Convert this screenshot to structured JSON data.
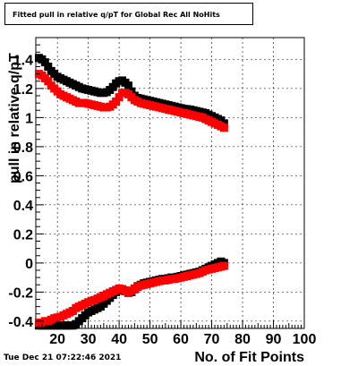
{
  "title": "Fitted pull in relative q/pT for Global Rec All NoHits",
  "timestamp": "Tue Dec 21 07:22:46 2021",
  "chart_data": {
    "type": "scatter",
    "title": "Fitted pull in relative q/pT for Global Rec All NoHits",
    "xlabel": "No. of Fit Points",
    "ylabel": "pull in relative q/pT",
    "xlim": [
      13,
      100
    ],
    "ylim": [
      -0.45,
      1.55
    ],
    "x_ticks": [
      20,
      30,
      40,
      50,
      60,
      70,
      80,
      90,
      100
    ],
    "x_tick_labels": [
      "20",
      "30",
      "40",
      "50",
      "60",
      "70",
      "80",
      "90",
      "100"
    ],
    "y_ticks": [
      -0.4,
      -0.2,
      0,
      0.2,
      0.4,
      0.6,
      0.8,
      1,
      1.2,
      1.4
    ],
    "y_tick_labels": [
      "-0.4",
      "-0.2",
      "0",
      "0.2",
      "0.4",
      "0.6",
      "0.8",
      "1",
      "1.2",
      "1.4"
    ],
    "grid": true,
    "x": [
      14,
      15,
      16,
      17,
      18,
      19,
      20,
      21,
      22,
      23,
      24,
      25,
      26,
      27,
      28,
      29,
      30,
      31,
      32,
      33,
      34,
      35,
      36,
      37,
      38,
      39,
      40,
      41,
      42,
      43,
      44,
      45,
      46,
      47,
      48,
      49,
      50,
      51,
      52,
      53,
      54,
      55,
      56,
      57,
      58,
      59,
      60,
      61,
      62,
      63,
      64,
      65,
      66,
      67,
      68,
      69,
      70,
      71,
      72,
      73,
      74
    ],
    "series": [
      {
        "color": "#000000",
        "upper": [
          1.41,
          1.4,
          1.38,
          1.35,
          1.32,
          1.3,
          1.28,
          1.27,
          1.26,
          1.25,
          1.24,
          1.23,
          1.22,
          1.21,
          1.2,
          1.195,
          1.19,
          1.185,
          1.18,
          1.175,
          1.17,
          1.17,
          1.175,
          1.19,
          1.21,
          1.235,
          1.25,
          1.255,
          1.24,
          1.22,
          1.18,
          1.15,
          1.135,
          1.13,
          1.125,
          1.12,
          1.115,
          1.11,
          1.105,
          1.1,
          1.095,
          1.09,
          1.085,
          1.08,
          1.075,
          1.07,
          1.065,
          1.06,
          1.058,
          1.055,
          1.05,
          1.045,
          1.04,
          1.035,
          1.03,
          1.02,
          1.01,
          1.0,
          0.99,
          0.98,
          0.96
        ],
        "lower": [
          -0.43,
          -0.43,
          -0.43,
          -0.43,
          -0.43,
          -0.43,
          -0.43,
          -0.43,
          -0.43,
          -0.43,
          -0.43,
          -0.43,
          -0.42,
          -0.4,
          -0.38,
          -0.36,
          -0.34,
          -0.33,
          -0.32,
          -0.31,
          -0.3,
          -0.28,
          -0.26,
          -0.24,
          -0.22,
          -0.2,
          -0.19,
          -0.18,
          -0.19,
          -0.205,
          -0.2,
          -0.18,
          -0.16,
          -0.15,
          -0.14,
          -0.135,
          -0.13,
          -0.125,
          -0.12,
          -0.115,
          -0.11,
          -0.11,
          -0.105,
          -0.1,
          -0.1,
          -0.095,
          -0.09,
          -0.085,
          -0.08,
          -0.075,
          -0.07,
          -0.065,
          -0.06,
          -0.05,
          -0.04,
          -0.03,
          -0.02,
          -0.01,
          0.0,
          0.01,
          0.0
        ]
      },
      {
        "color": "#ff0000",
        "upper": [
          1.3,
          1.29,
          1.27,
          1.25,
          1.22,
          1.2,
          1.18,
          1.16,
          1.15,
          1.14,
          1.13,
          1.12,
          1.11,
          1.1,
          1.1,
          1.1,
          1.095,
          1.09,
          1.085,
          1.08,
          1.075,
          1.07,
          1.07,
          1.075,
          1.09,
          1.11,
          1.14,
          1.17,
          1.17,
          1.16,
          1.14,
          1.12,
          1.11,
          1.1,
          1.095,
          1.09,
          1.085,
          1.08,
          1.075,
          1.07,
          1.065,
          1.06,
          1.055,
          1.05,
          1.045,
          1.04,
          1.035,
          1.03,
          1.025,
          1.02,
          1.015,
          1.01,
          1.005,
          1.0,
          0.99,
          0.98,
          0.97,
          0.96,
          0.95,
          0.94,
          0.93
        ],
        "lower": [
          -0.41,
          -0.41,
          -0.4,
          -0.4,
          -0.39,
          -0.38,
          -0.375,
          -0.37,
          -0.36,
          -0.35,
          -0.34,
          -0.33,
          -0.31,
          -0.3,
          -0.29,
          -0.28,
          -0.27,
          -0.26,
          -0.255,
          -0.245,
          -0.235,
          -0.225,
          -0.215,
          -0.205,
          -0.195,
          -0.185,
          -0.175,
          -0.18,
          -0.195,
          -0.2,
          -0.19,
          -0.175,
          -0.165,
          -0.155,
          -0.15,
          -0.145,
          -0.14,
          -0.135,
          -0.13,
          -0.125,
          -0.12,
          -0.12,
          -0.115,
          -0.11,
          -0.11,
          -0.105,
          -0.1,
          -0.095,
          -0.09,
          -0.085,
          -0.08,
          -0.075,
          -0.07,
          -0.06,
          -0.05,
          -0.045,
          -0.04,
          -0.035,
          -0.03,
          -0.025,
          -0.02
        ]
      }
    ]
  }
}
